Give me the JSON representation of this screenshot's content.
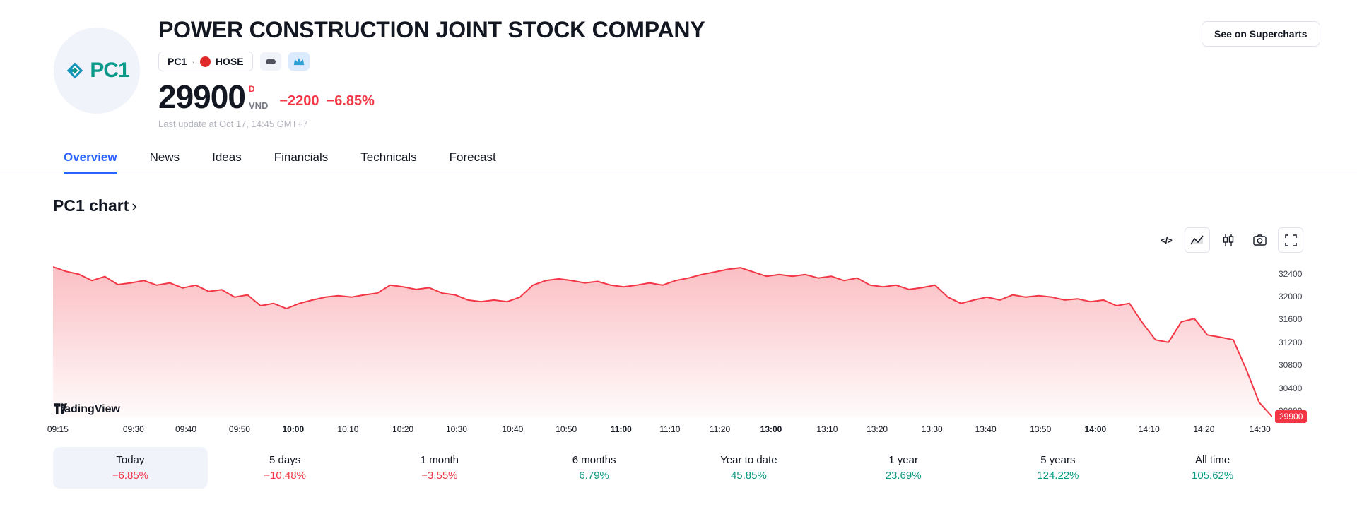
{
  "header": {
    "logo_text": "PC1",
    "company_name": "POWER CONSTRUCTION JOINT STOCK COMPANY",
    "symbol": "PC1",
    "separator": "·",
    "exchange": "HOSE",
    "price": "29900",
    "session_flag": "D",
    "currency": "VND",
    "change": "−2200",
    "change_pct": "−6.85%",
    "last_update": "Last update at Oct 17, 14:45 GMT+7",
    "supercharts_button": "See on Supercharts"
  },
  "tabs": [
    {
      "label": "Overview",
      "active": true
    },
    {
      "label": "News",
      "active": false
    },
    {
      "label": "Ideas",
      "active": false
    },
    {
      "label": "Financials",
      "active": false
    },
    {
      "label": "Technicals",
      "active": false
    },
    {
      "label": "Forecast",
      "active": false
    }
  ],
  "section": {
    "title": "PC1 chart",
    "chevron": "›"
  },
  "toolbar": {
    "code_icon": "</>"
  },
  "attribution": {
    "label": "TradingView"
  },
  "chart_data": {
    "type": "area",
    "symbol": "PC1",
    "line_color": "#F23645",
    "fill_opacity_top": 0.32,
    "fill_opacity_bottom": 0.02,
    "ylim": [
      29890,
      32580
    ],
    "y_ticks": [
      32400,
      32000,
      31600,
      31200,
      30800,
      30400,
      30000
    ],
    "last_price_label": "29900",
    "x_ticks": [
      {
        "label": "09:15",
        "pos": 0.004,
        "bold": false
      },
      {
        "label": "09:30",
        "pos": 0.066,
        "bold": false
      },
      {
        "label": "09:40",
        "pos": 0.109,
        "bold": false
      },
      {
        "label": "09:50",
        "pos": 0.153,
        "bold": false
      },
      {
        "label": "10:00",
        "pos": 0.197,
        "bold": true
      },
      {
        "label": "10:10",
        "pos": 0.242,
        "bold": false
      },
      {
        "label": "10:20",
        "pos": 0.287,
        "bold": false
      },
      {
        "label": "10:30",
        "pos": 0.331,
        "bold": false
      },
      {
        "label": "10:40",
        "pos": 0.377,
        "bold": false
      },
      {
        "label": "10:50",
        "pos": 0.421,
        "bold": false
      },
      {
        "label": "11:00",
        "pos": 0.466,
        "bold": true
      },
      {
        "label": "11:10",
        "pos": 0.506,
        "bold": false
      },
      {
        "label": "11:20",
        "pos": 0.547,
        "bold": false
      },
      {
        "label": "13:00",
        "pos": 0.589,
        "bold": true
      },
      {
        "label": "13:10",
        "pos": 0.635,
        "bold": false
      },
      {
        "label": "13:20",
        "pos": 0.676,
        "bold": false
      },
      {
        "label": "13:30",
        "pos": 0.721,
        "bold": false
      },
      {
        "label": "13:40",
        "pos": 0.765,
        "bold": false
      },
      {
        "label": "13:50",
        "pos": 0.81,
        "bold": false
      },
      {
        "label": "14:00",
        "pos": 0.855,
        "bold": true
      },
      {
        "label": "14:10",
        "pos": 0.899,
        "bold": false
      },
      {
        "label": "14:20",
        "pos": 0.944,
        "bold": false
      },
      {
        "label": "14:30",
        "pos": 0.99,
        "bold": false
      }
    ],
    "values": [
      32520,
      32440,
      32390,
      32280,
      32350,
      32210,
      32240,
      32280,
      32200,
      32240,
      32150,
      32200,
      32090,
      32120,
      31990,
      32030,
      31840,
      31880,
      31790,
      31880,
      31940,
      31990,
      32015,
      31990,
      32030,
      32060,
      32200,
      32170,
      32125,
      32155,
      32060,
      32030,
      31940,
      31910,
      31940,
      31910,
      31990,
      32200,
      32280,
      32310,
      32280,
      32240,
      32265,
      32200,
      32170,
      32200,
      32240,
      32200,
      32280,
      32325,
      32385,
      32430,
      32475,
      32505,
      32430,
      32355,
      32385,
      32355,
      32385,
      32325,
      32355,
      32280,
      32325,
      32200,
      32170,
      32200,
      32125,
      32155,
      32200,
      31990,
      31880,
      31940,
      31990,
      31940,
      32030,
      31990,
      32015,
      31990,
      31940,
      31960,
      31910,
      31940,
      31840,
      31880,
      31540,
      31245,
      31200,
      31560,
      31615,
      31330,
      31290,
      31245,
      30725,
      30150,
      29900
    ]
  },
  "periods": [
    {
      "label": "Today",
      "value": "−6.85%",
      "direction": "down",
      "selected": true
    },
    {
      "label": "5 days",
      "value": "−10.48%",
      "direction": "down",
      "selected": false
    },
    {
      "label": "1 month",
      "value": "−3.55%",
      "direction": "down",
      "selected": false
    },
    {
      "label": "6 months",
      "value": "6.79%",
      "direction": "up",
      "selected": false
    },
    {
      "label": "Year to date",
      "value": "45.85%",
      "direction": "up",
      "selected": false
    },
    {
      "label": "1 year",
      "value": "23.69%",
      "direction": "up",
      "selected": false
    },
    {
      "label": "5 years",
      "value": "124.22%",
      "direction": "up",
      "selected": false
    },
    {
      "label": "All time",
      "value": "105.62%",
      "direction": "up",
      "selected": false
    }
  ]
}
